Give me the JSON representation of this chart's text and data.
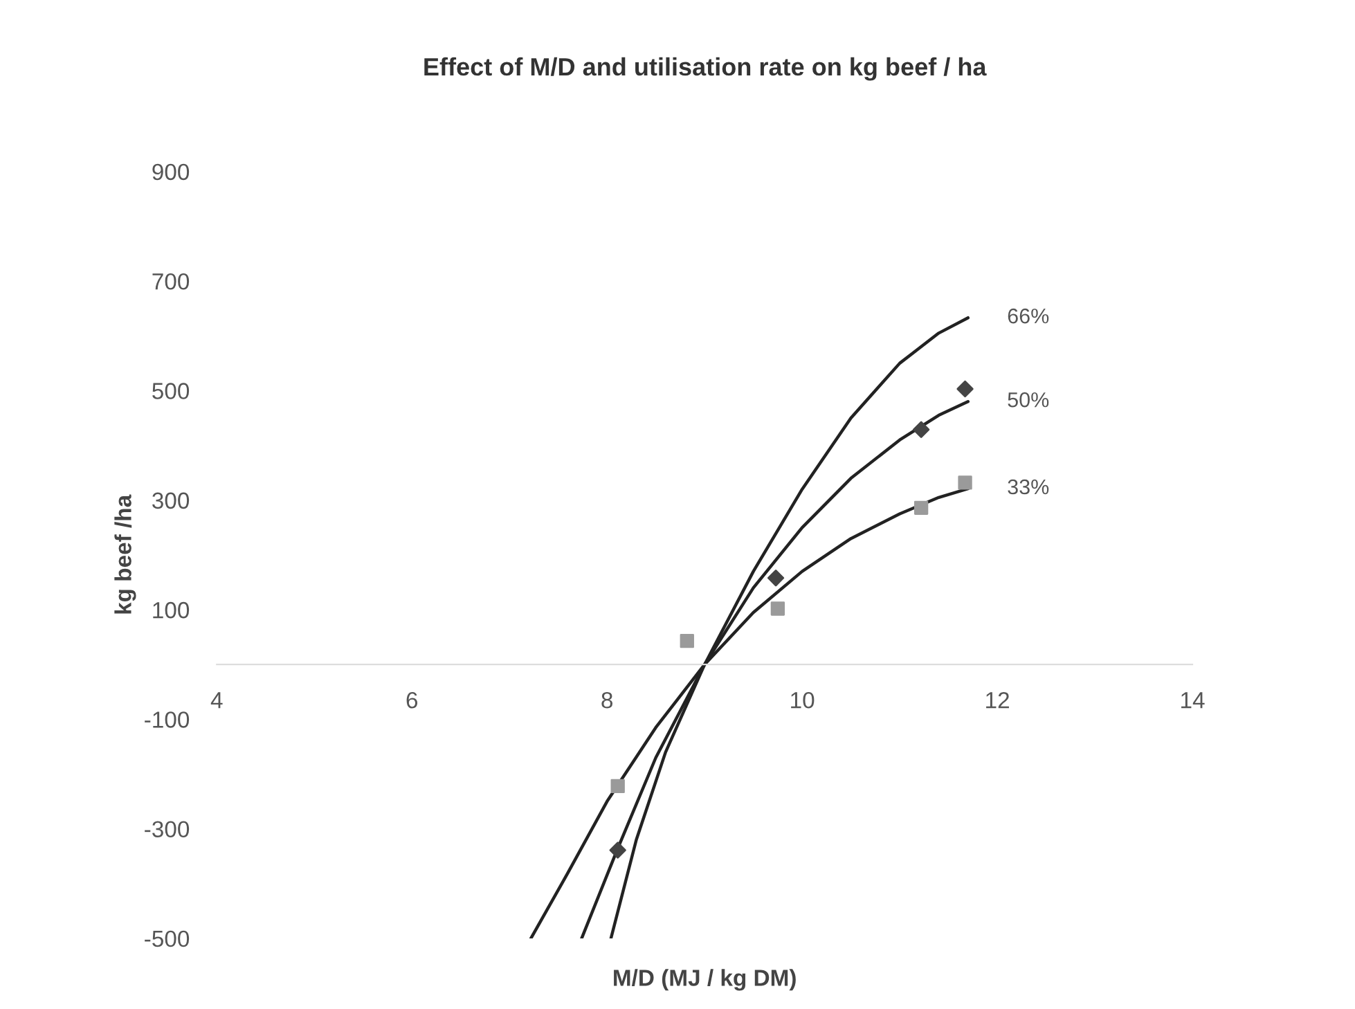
{
  "chart_data": {
    "type": "scatter",
    "title": "Effect of M/D and utilisation rate on kg beef / ha",
    "xlabel": "M/D (MJ / kg DM)",
    "ylabel": "kg beef /ha",
    "xlim": [
      4,
      14
    ],
    "xticks": [
      4,
      6,
      8,
      10,
      12,
      14
    ],
    "ylim": [
      -500,
      900
    ],
    "yticks": [
      -500,
      -300,
      -100,
      100,
      300,
      500,
      700,
      900
    ],
    "grid": false,
    "legend": false,
    "series": [
      {
        "name": "33%",
        "type": "line",
        "color": "#222222",
        "marker": "none",
        "x": [
          7.22,
          7.6,
          8.0,
          8.5,
          9,
          9.5,
          10,
          10.5,
          11,
          11.4,
          11.7
        ],
        "values": [
          -500,
          -380,
          -250,
          -115,
          0,
          95,
          170,
          230,
          275,
          305,
          321
        ]
      },
      {
        "name": "50%",
        "type": "line",
        "color": "#222222",
        "marker": "none",
        "x": [
          7.74,
          8.1,
          8.5,
          9,
          9.5,
          10,
          10.5,
          11,
          11.4,
          11.7
        ],
        "values": [
          -500,
          -340,
          -170,
          0,
          140,
          250,
          340,
          410,
          455,
          480
        ]
      },
      {
        "name": "66%",
        "type": "line",
        "color": "#222222",
        "marker": "none",
        "x": [
          8.04,
          8.3,
          8.6,
          9,
          9.5,
          10,
          10.5,
          11,
          11.4,
          11.7
        ],
        "values": [
          -500,
          -320,
          -160,
          0,
          170,
          320,
          450,
          550,
          605,
          633
        ]
      },
      {
        "color": "#444444",
        "marker": "diamond",
        "x": [
          8.11,
          9.73,
          11.22,
          11.67
        ],
        "values": [
          -339,
          158,
          429,
          503
        ]
      },
      {
        "color": "#9a9a9a",
        "marker": "square",
        "x": [
          8.11,
          8.82,
          9.75,
          11.22,
          11.67
        ],
        "values": [
          -222,
          43,
          102,
          286,
          332
        ]
      }
    ]
  }
}
